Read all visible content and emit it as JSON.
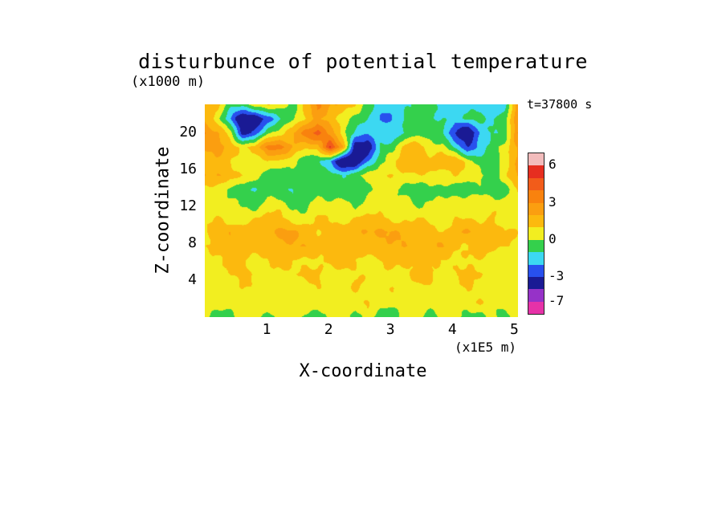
{
  "chart_data": {
    "type": "heatmap",
    "title": "disturbunce of potential temperature",
    "time_annotation": "t=37800 s",
    "x": {
      "label": "X-coordinate",
      "unit_label": "(x1E5 m)",
      "ticks": [
        1,
        2,
        3,
        4,
        5
      ],
      "range": [
        0,
        5.06
      ]
    },
    "z": {
      "label": "Z-coordinate",
      "unit_label": "(x1000 m)",
      "ticks": [
        4,
        8,
        12,
        16,
        20
      ],
      "range": [
        0,
        23
      ]
    },
    "colorbar": {
      "segment_colors_top_to_bottom": [
        "#f2bcbc",
        "#e62e20",
        "#f25c1a",
        "#f9820e",
        "#fb9e10",
        "#fcb90e",
        "#f2ee20",
        "#34d04c",
        "#3cd8f2",
        "#2850ee",
        "#1a1a94",
        "#9632c8",
        "#e632a8"
      ],
      "level_boundaries_top_to_bottom": [
        6,
        5,
        4,
        3,
        2,
        1,
        0,
        -1,
        -2,
        -3,
        -5,
        -7
      ],
      "tick_labels": [
        {
          "text": "6",
          "boundary_index": 1
        },
        {
          "text": "3",
          "boundary_index": 4
        },
        {
          "text": "0",
          "boundary_index": 7
        },
        {
          "text": "-3",
          "boundary_index": 10
        },
        {
          "text": "-7",
          "boundary_index": 12
        }
      ]
    },
    "grid": {
      "orientation": "rows_top_to_bottom",
      "values": [
        [
          1.5,
          1,
          -0.5,
          -0.5,
          0.5,
          1,
          0.5,
          -0.5,
          1.5,
          3,
          2,
          2,
          1,
          -0.5,
          -1.5,
          -1.8,
          -1,
          -0.5,
          -0.8,
          -1.5,
          -1,
          -1.5,
          -1.5,
          -1.8,
          -1.5,
          3
        ],
        [
          2,
          0.5,
          -2,
          -4.5,
          -4.5,
          -2.5,
          -1,
          -0.5,
          1,
          2.5,
          1.5,
          0.5,
          -0.5,
          -1,
          -2,
          -2,
          -1,
          -0.5,
          -1,
          -1,
          -1.5,
          -1,
          -0.5,
          -1,
          -0.5,
          2.5
        ],
        [
          3,
          2,
          0.5,
          -3.5,
          -2.5,
          -0.5,
          0.5,
          2,
          3.5,
          4.5,
          2.5,
          0.5,
          -1,
          -2,
          -1.5,
          -1.5,
          -1,
          -0.5,
          -0.5,
          -1,
          -3,
          -4.5,
          -2,
          -1,
          -0.5,
          3
        ],
        [
          2,
          3,
          1.5,
          0.5,
          1.5,
          3.5,
          3.5,
          2,
          1,
          1.5,
          5.5,
          2,
          -4,
          -4,
          -1,
          -0.5,
          1.5,
          1.5,
          0.5,
          0.5,
          -1.5,
          -3,
          -1.5,
          -0.5,
          0.5,
          2
        ],
        [
          1.5,
          1.5,
          1,
          0.5,
          0.5,
          1,
          0.5,
          0.5,
          -0.5,
          -1,
          -2,
          -4.5,
          -4.5,
          -2,
          -0.5,
          0.5,
          2,
          2,
          1,
          2,
          2,
          0.5,
          -0.5,
          -1,
          0.5,
          2.5
        ],
        [
          2,
          2,
          1.5,
          1,
          0.5,
          -0.5,
          -0.5,
          -0.5,
          -0.5,
          -0.5,
          -0.5,
          -1,
          -0.5,
          0.5,
          1,
          1,
          0.5,
          1,
          1,
          0.5,
          1,
          0.5,
          0.5,
          -0.5,
          0.5,
          2
        ],
        [
          1,
          0.5,
          -0.5,
          -0.5,
          -1,
          -1,
          -0.5,
          -1,
          -0.5,
          -0.5,
          -1,
          -1,
          -0.5,
          -0.5,
          0.5,
          0.5,
          -0.5,
          -0.5,
          -0.5,
          -0.5,
          -0.5,
          -0.5,
          -0.5,
          -0.5,
          -0.5,
          1
        ],
        [
          0.5,
          0.5,
          0.5,
          -0.5,
          -0.5,
          0.5,
          0.5,
          -0.5,
          -0.5,
          0.5,
          0.5,
          0.5,
          -0.5,
          0.5,
          0.5,
          0.5,
          0.5,
          -0.5,
          0.5,
          0.5,
          0.5,
          0.5,
          0.5,
          0.5,
          0.5,
          0.5
        ],
        [
          0.5,
          1,
          0.5,
          0.5,
          1,
          1.5,
          1,
          0.5,
          0.5,
          1,
          1,
          0.5,
          1,
          1.5,
          1,
          0.5,
          1,
          1,
          0.5,
          0.5,
          1,
          1,
          0.5,
          1,
          0.5,
          0.5
        ],
        [
          1,
          1.5,
          2,
          1.5,
          1,
          2,
          2.5,
          2,
          1.5,
          1,
          1.5,
          2,
          1.5,
          2,
          2.5,
          2,
          1.5,
          2,
          1.5,
          1,
          1.5,
          2,
          2,
          1.5,
          1,
          1
        ],
        [
          1,
          1.5,
          1.5,
          2,
          1.5,
          1,
          1.5,
          2,
          2,
          1.5,
          1,
          1.5,
          2,
          1.5,
          1.5,
          2,
          2,
          1.5,
          1.5,
          2,
          1.5,
          1,
          1.5,
          1.5,
          1,
          1
        ],
        [
          0.5,
          1,
          1.5,
          1,
          0.5,
          1,
          1.5,
          1,
          0.5,
          1,
          1.5,
          1.5,
          1,
          0.5,
          1,
          1.5,
          1,
          1,
          1.5,
          1,
          0.5,
          1,
          1,
          0.5,
          0.5,
          0.5
        ],
        [
          0.5,
          0.5,
          1,
          1.5,
          1,
          0.5,
          0.5,
          1,
          1.5,
          1,
          0.5,
          0.5,
          1,
          1,
          0.5,
          0.5,
          1,
          1.5,
          1,
          0.5,
          1,
          1.5,
          1,
          0.5,
          0.5,
          0.5
        ],
        [
          0.5,
          0.5,
          0.5,
          1,
          0.5,
          0.5,
          1,
          0.5,
          0.5,
          1,
          0.5,
          0.5,
          1,
          0.5,
          0.5,
          1,
          0.5,
          0.5,
          1,
          0.5,
          0.5,
          1,
          0.5,
          0.5,
          0.5,
          0.5
        ],
        [
          0.5,
          0.5,
          0.5,
          0.5,
          1,
          0.5,
          0.5,
          0.5,
          1,
          0.5,
          0.5,
          0.5,
          0.5,
          1,
          0.5,
          0.5,
          0.5,
          1,
          0.5,
          0.5,
          0.5,
          0.5,
          1,
          0.5,
          0.5,
          0.5
        ],
        [
          0.5,
          -0.5,
          -0.5,
          0.5,
          0.5,
          -0.5,
          0.5,
          0.5,
          -0.5,
          -0.5,
          0.5,
          0.5,
          -0.5,
          0.5,
          -0.5,
          -0.5,
          0.5,
          0.5,
          -0.5,
          0.5,
          0.5,
          -0.5,
          -0.5,
          0.5,
          -0.5,
          0.5
        ]
      ]
    }
  }
}
